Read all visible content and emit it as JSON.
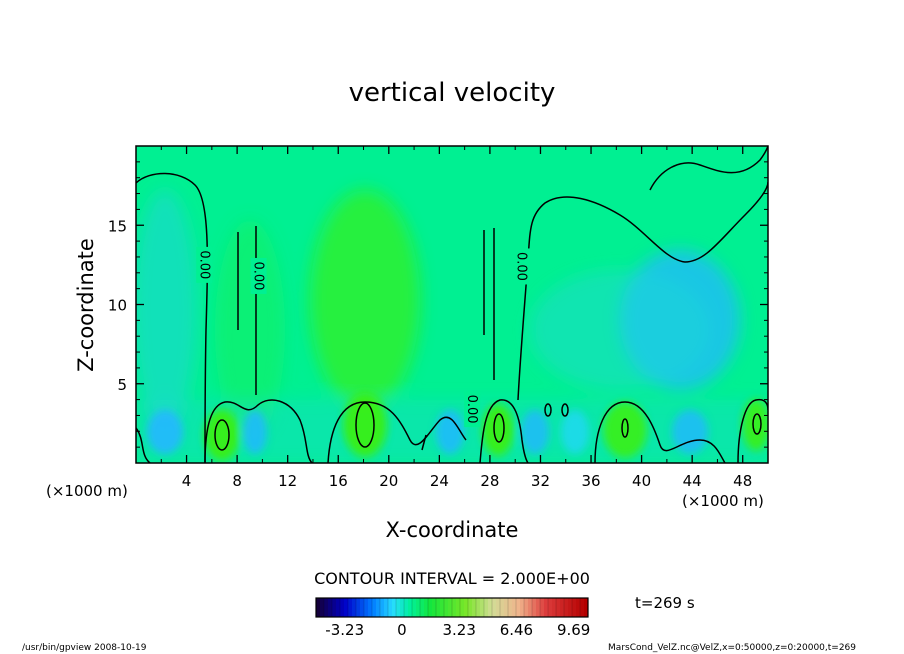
{
  "chart_data": {
    "type": "heatmap",
    "title": "vertical velocity",
    "xlabel": "X-coordinate",
    "ylabel": "Z-coordinate",
    "x_unit_left": "(×1000 m)",
    "x_unit_right": "(×1000 m)",
    "xlim": [
      0,
      50
    ],
    "ylim": [
      0,
      20
    ],
    "x_ticks": [
      4,
      8,
      12,
      16,
      20,
      24,
      28,
      32,
      36,
      40,
      44,
      48
    ],
    "y_ticks": [
      5,
      10,
      15
    ],
    "x_tick_labels": [
      "4",
      "8",
      "12",
      "16",
      "20",
      "24",
      "28",
      "32",
      "36",
      "40",
      "44",
      "48"
    ],
    "y_tick_labels": [
      "5",
      "10",
      "15"
    ],
    "contour_interval_text": "CONTOUR INTERVAL = 2.000E+00",
    "contour_labels": [
      {
        "text": "0.00",
        "x": 5.4,
        "z": 12.5
      },
      {
        "text": "0.00",
        "x": 9.7,
        "z": 11.8
      },
      {
        "text": "0.00",
        "x": 30.5,
        "z": 12.4
      },
      {
        "text": "0.00",
        "x": 26.6,
        "z": 3.4
      }
    ],
    "colorbar": {
      "min": -4.85,
      "max": 10.5,
      "tick_values": [
        -3.23,
        0,
        3.23,
        6.46,
        9.69
      ],
      "tick_labels": [
        "-3.23",
        "0",
        "3.23",
        "6.46",
        "9.69"
      ]
    },
    "time_label": "t=269 s",
    "grid": false
  },
  "footer": {
    "left": "/usr/bin/gpview   2008-10-19",
    "right": "MarsCond_VelZ.nc@VelZ,x=0:50000,z=0:20000,t=269"
  },
  "colors": {
    "background": "#00f092",
    "positive": "#3cf012",
    "negative": "#22b8ff",
    "contour": "#000000"
  }
}
